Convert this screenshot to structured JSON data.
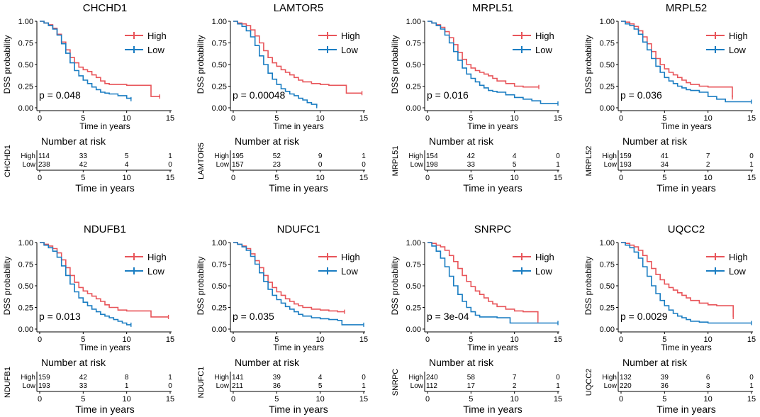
{
  "figure": {
    "colors": {
      "high": "#E8555A",
      "low": "#1A7DC2"
    },
    "common": {
      "ylabel": "DSS probability",
      "xlabel": "Time in years",
      "risk_title": "Number at risk",
      "legend_high": "High",
      "legend_low": "Low",
      "x_ticks": [
        "0",
        "5",
        "10",
        "15"
      ],
      "y_ticks": [
        "0.00",
        "0.25",
        "0.50",
        "0.75",
        "1.00"
      ],
      "risk_row_high": "High",
      "risk_row_low": "Low"
    }
  },
  "chart_data": [
    {
      "type": "line",
      "title": "CHCHD1",
      "pvalue": "p = 0.048",
      "xlabel": "Time in years",
      "ylabel": "DSS probability",
      "xlim": [
        0,
        15
      ],
      "ylim": [
        0,
        1
      ],
      "series": [
        {
          "name": "High",
          "x": [
            0,
            0.5,
            1,
            1.5,
            2,
            2.5,
            3,
            3.5,
            4,
            4.5,
            5,
            5.5,
            6,
            6.5,
            7,
            7.5,
            8,
            9,
            10,
            11,
            12,
            12.7,
            12.8,
            13.8
          ],
          "y": [
            1,
            0.98,
            0.96,
            0.92,
            0.85,
            0.76,
            0.67,
            0.58,
            0.52,
            0.47,
            0.44,
            0.42,
            0.38,
            0.35,
            0.31,
            0.28,
            0.27,
            0.27,
            0.26,
            0.26,
            0.26,
            0.26,
            0.13,
            0.13
          ]
        },
        {
          "name": "Low",
          "x": [
            0,
            0.5,
            1,
            1.5,
            2,
            2.5,
            3,
            3.5,
            4,
            4.5,
            5,
            5.5,
            6,
            6.5,
            7,
            7.5,
            8,
            9,
            10,
            10.5
          ],
          "y": [
            1,
            0.98,
            0.95,
            0.91,
            0.84,
            0.74,
            0.63,
            0.52,
            0.43,
            0.37,
            0.32,
            0.28,
            0.24,
            0.21,
            0.18,
            0.17,
            0.16,
            0.14,
            0.11,
            0.1
          ]
        }
      ],
      "risk_table": {
        "x": [
          0,
          5,
          10,
          15
        ],
        "High": [
          114,
          33,
          5,
          1
        ],
        "Low": [
          238,
          42,
          4,
          0
        ]
      }
    },
    {
      "type": "line",
      "title": "LAMTOR5",
      "pvalue": "p = 0.00048",
      "xlabel": "Time in years",
      "ylabel": "DSS probability",
      "xlim": [
        0,
        15
      ],
      "ylim": [
        0,
        1
      ],
      "series": [
        {
          "name": "High",
          "x": [
            0,
            0.5,
            1,
            1.5,
            2,
            2.5,
            3,
            3.5,
            4,
            4.5,
            5,
            5.5,
            6,
            6.5,
            7,
            7.5,
            8,
            9,
            10,
            11,
            12,
            12.5,
            13,
            14.8
          ],
          "y": [
            1,
            0.98,
            0.97,
            0.95,
            0.9,
            0.83,
            0.75,
            0.66,
            0.58,
            0.52,
            0.48,
            0.44,
            0.41,
            0.38,
            0.35,
            0.32,
            0.3,
            0.28,
            0.27,
            0.26,
            0.26,
            0.26,
            0.17,
            0.17
          ]
        },
        {
          "name": "Low",
          "x": [
            0,
            0.5,
            1,
            1.5,
            2,
            2.5,
            3,
            3.5,
            4,
            4.5,
            5,
            5.5,
            6,
            6.5,
            7,
            7.5,
            8,
            8.5,
            9,
            9.6
          ],
          "y": [
            1,
            0.97,
            0.94,
            0.89,
            0.82,
            0.72,
            0.6,
            0.5,
            0.4,
            0.33,
            0.27,
            0.22,
            0.19,
            0.16,
            0.14,
            0.11,
            0.09,
            0.06,
            0.04,
            0.02
          ]
        }
      ],
      "risk_table": {
        "x": [
          0,
          5,
          10,
          15
        ],
        "High": [
          195,
          52,
          9,
          1
        ],
        "Low": [
          157,
          23,
          0,
          0
        ]
      }
    },
    {
      "type": "line",
      "title": "MRPL51",
      "pvalue": "p = 0.016",
      "xlabel": "Time in years",
      "ylabel": "DSS probability",
      "xlim": [
        0,
        15
      ],
      "ylim": [
        0,
        1
      ],
      "series": [
        {
          "name": "High",
          "x": [
            0,
            0.5,
            1,
            1.5,
            2,
            2.5,
            3,
            3.5,
            4,
            4.5,
            5,
            5.5,
            6,
            6.5,
            7,
            7.5,
            8,
            9,
            10,
            11,
            12,
            12.8
          ],
          "y": [
            1,
            0.98,
            0.96,
            0.93,
            0.88,
            0.81,
            0.73,
            0.64,
            0.56,
            0.5,
            0.46,
            0.43,
            0.41,
            0.39,
            0.37,
            0.34,
            0.31,
            0.28,
            0.25,
            0.24,
            0.24,
            0.24
          ]
        },
        {
          "name": "Low",
          "x": [
            0,
            0.5,
            1,
            1.5,
            2,
            2.5,
            3,
            3.5,
            4,
            4.5,
            5,
            5.5,
            6,
            6.5,
            7,
            7.5,
            8,
            9,
            10,
            11,
            12,
            13,
            15
          ],
          "y": [
            1,
            0.98,
            0.95,
            0.91,
            0.84,
            0.75,
            0.65,
            0.55,
            0.46,
            0.39,
            0.34,
            0.3,
            0.26,
            0.23,
            0.2,
            0.19,
            0.18,
            0.15,
            0.12,
            0.1,
            0.08,
            0.05,
            0.05
          ]
        }
      ],
      "risk_table": {
        "x": [
          0,
          5,
          10,
          15
        ],
        "High": [
          154,
          42,
          4,
          0
        ],
        "Low": [
          198,
          33,
          5,
          1
        ]
      }
    },
    {
      "type": "line",
      "title": "MRPL52",
      "pvalue": "p = 0.036",
      "xlabel": "Time in years",
      "ylabel": "DSS probability",
      "xlim": [
        0,
        15
      ],
      "ylim": [
        0,
        1
      ],
      "series": [
        {
          "name": "High",
          "x": [
            0,
            0.5,
            1,
            1.5,
            2,
            2.5,
            3,
            3.5,
            4,
            4.5,
            5,
            5.5,
            6,
            6.5,
            7,
            7.5,
            8,
            9,
            10,
            11,
            12,
            12.7,
            12.8
          ],
          "y": [
            1,
            0.99,
            0.97,
            0.94,
            0.89,
            0.82,
            0.74,
            0.65,
            0.57,
            0.5,
            0.45,
            0.41,
            0.38,
            0.35,
            0.32,
            0.29,
            0.27,
            0.25,
            0.24,
            0.24,
            0.24,
            0.24,
            0.12
          ]
        },
        {
          "name": "Low",
          "x": [
            0,
            0.5,
            1,
            1.5,
            2,
            2.5,
            3,
            3.5,
            4,
            4.5,
            5,
            5.5,
            6,
            6.5,
            7,
            7.5,
            8,
            9,
            10,
            11,
            12,
            15
          ],
          "y": [
            1,
            0.97,
            0.95,
            0.91,
            0.85,
            0.76,
            0.67,
            0.57,
            0.48,
            0.41,
            0.35,
            0.31,
            0.28,
            0.25,
            0.23,
            0.21,
            0.2,
            0.18,
            0.13,
            0.1,
            0.07,
            0.07
          ]
        }
      ],
      "risk_table": {
        "x": [
          0,
          5,
          10,
          15
        ],
        "High": [
          159,
          41,
          7,
          0
        ],
        "Low": [
          193,
          34,
          2,
          1
        ]
      }
    },
    {
      "type": "line",
      "title": "NDUFB1",
      "pvalue": "p = 0.013",
      "xlabel": "Time in years",
      "ylabel": "DSS probability",
      "xlim": [
        0,
        15
      ],
      "ylim": [
        0,
        1
      ],
      "series": [
        {
          "name": "High",
          "x": [
            0,
            0.5,
            1,
            1.5,
            2,
            2.5,
            3,
            3.5,
            4,
            4.5,
            5,
            5.5,
            6,
            6.5,
            7,
            7.5,
            8,
            9,
            10,
            11,
            12,
            12.7,
            12.8,
            14.8
          ],
          "y": [
            1,
            0.98,
            0.96,
            0.93,
            0.88,
            0.8,
            0.71,
            0.62,
            0.54,
            0.48,
            0.44,
            0.41,
            0.38,
            0.35,
            0.32,
            0.28,
            0.25,
            0.22,
            0.21,
            0.21,
            0.21,
            0.21,
            0.14,
            0.14
          ]
        },
        {
          "name": "Low",
          "x": [
            0,
            0.5,
            1,
            1.5,
            2,
            2.5,
            3,
            3.5,
            4,
            4.5,
            5,
            5.5,
            6,
            6.5,
            7,
            7.5,
            8,
            8.5,
            9,
            9.5,
            10,
            10.5
          ],
          "y": [
            1,
            0.97,
            0.94,
            0.9,
            0.83,
            0.73,
            0.62,
            0.52,
            0.43,
            0.36,
            0.31,
            0.27,
            0.23,
            0.2,
            0.17,
            0.15,
            0.13,
            0.11,
            0.09,
            0.07,
            0.05,
            0.05
          ]
        }
      ],
      "risk_table": {
        "x": [
          0,
          5,
          10,
          15
        ],
        "High": [
          159,
          42,
          8,
          1
        ],
        "Low": [
          193,
          33,
          1,
          0
        ]
      }
    },
    {
      "type": "line",
      "title": "NDUFC1",
      "pvalue": "p = 0.035",
      "xlabel": "Time in years",
      "ylabel": "DSS probability",
      "xlim": [
        0,
        15
      ],
      "ylim": [
        0,
        1
      ],
      "series": [
        {
          "name": "High",
          "x": [
            0,
            0.5,
            1,
            1.5,
            2,
            2.5,
            3,
            3.5,
            4,
            4.5,
            5,
            5.5,
            6,
            6.5,
            7,
            7.5,
            8,
            9,
            10,
            11,
            12,
            12.8
          ],
          "y": [
            1,
            0.98,
            0.96,
            0.93,
            0.87,
            0.79,
            0.71,
            0.62,
            0.54,
            0.48,
            0.43,
            0.39,
            0.35,
            0.32,
            0.29,
            0.27,
            0.25,
            0.23,
            0.22,
            0.21,
            0.2,
            0.2
          ]
        },
        {
          "name": "Low",
          "x": [
            0,
            0.5,
            1,
            1.5,
            2,
            2.5,
            3,
            3.5,
            4,
            4.5,
            5,
            5.5,
            6,
            6.5,
            7,
            7.5,
            8,
            9,
            10,
            11,
            12,
            12.5,
            15
          ],
          "y": [
            1,
            0.98,
            0.95,
            0.91,
            0.84,
            0.75,
            0.65,
            0.55,
            0.46,
            0.39,
            0.34,
            0.3,
            0.26,
            0.23,
            0.2,
            0.17,
            0.15,
            0.13,
            0.12,
            0.11,
            0.1,
            0.05,
            0.05
          ]
        }
      ],
      "risk_table": {
        "x": [
          0,
          5,
          10,
          15
        ],
        "High": [
          141,
          39,
          4,
          0
        ],
        "Low": [
          211,
          36,
          5,
          1
        ]
      }
    },
    {
      "type": "line",
      "title": "SNRPC",
      "pvalue": "p = 3e-04",
      "xlabel": "Time in years",
      "ylabel": "DSS probability",
      "xlim": [
        0,
        15
      ],
      "ylim": [
        0,
        1
      ],
      "series": [
        {
          "name": "High",
          "x": [
            0,
            0.5,
            1,
            1.5,
            2,
            2.5,
            3,
            3.5,
            4,
            4.5,
            5,
            5.5,
            6,
            6.5,
            7,
            7.5,
            8,
            9,
            10,
            11,
            12,
            12.6,
            12.7
          ],
          "y": [
            1,
            0.99,
            0.97,
            0.95,
            0.91,
            0.85,
            0.78,
            0.7,
            0.62,
            0.55,
            0.49,
            0.44,
            0.4,
            0.36,
            0.32,
            0.29,
            0.26,
            0.23,
            0.21,
            0.2,
            0.2,
            0.2,
            0.1
          ]
        },
        {
          "name": "Low",
          "x": [
            0,
            0.5,
            1,
            1.5,
            2,
            2.5,
            3,
            3.5,
            4,
            4.5,
            5,
            5.5,
            6,
            7,
            8,
            9,
            9.5,
            15
          ],
          "y": [
            1,
            0.96,
            0.9,
            0.82,
            0.72,
            0.61,
            0.5,
            0.4,
            0.32,
            0.25,
            0.2,
            0.16,
            0.14,
            0.14,
            0.13,
            0.13,
            0.07,
            0.07
          ]
        }
      ],
      "risk_table": {
        "x": [
          0,
          5,
          10,
          15
        ],
        "High": [
          240,
          58,
          7,
          0
        ],
        "Low": [
          112,
          17,
          2,
          1
        ]
      }
    },
    {
      "type": "line",
      "title": "UQCC2",
      "pvalue": "p = 0.0029",
      "xlabel": "Time in years",
      "ylabel": "DSS probability",
      "xlim": [
        0,
        15
      ],
      "ylim": [
        0,
        1
      ],
      "series": [
        {
          "name": "High",
          "x": [
            0,
            0.5,
            1,
            1.5,
            2,
            2.5,
            3,
            3.5,
            4,
            4.5,
            5,
            5.5,
            6,
            6.5,
            7,
            7.5,
            8,
            9,
            10,
            11,
            12,
            12.8,
            12.9
          ],
          "y": [
            1,
            0.99,
            0.97,
            0.95,
            0.91,
            0.85,
            0.78,
            0.7,
            0.63,
            0.57,
            0.52,
            0.48,
            0.45,
            0.42,
            0.39,
            0.36,
            0.33,
            0.3,
            0.28,
            0.27,
            0.27,
            0.27,
            0.14
          ]
        },
        {
          "name": "Low",
          "x": [
            0,
            0.5,
            1,
            1.5,
            2,
            2.5,
            3,
            3.5,
            4,
            4.5,
            5,
            5.5,
            6,
            6.5,
            7,
            7.5,
            8,
            9,
            10,
            11,
            12,
            15
          ],
          "y": [
            1,
            0.97,
            0.94,
            0.89,
            0.82,
            0.72,
            0.61,
            0.5,
            0.41,
            0.33,
            0.27,
            0.22,
            0.18,
            0.15,
            0.13,
            0.11,
            0.09,
            0.08,
            0.07,
            0.07,
            0.07,
            0.07
          ]
        }
      ],
      "risk_table": {
        "x": [
          0,
          5,
          10,
          15
        ],
        "High": [
          132,
          39,
          6,
          0
        ],
        "Low": [
          220,
          36,
          3,
          1
        ]
      }
    }
  ]
}
